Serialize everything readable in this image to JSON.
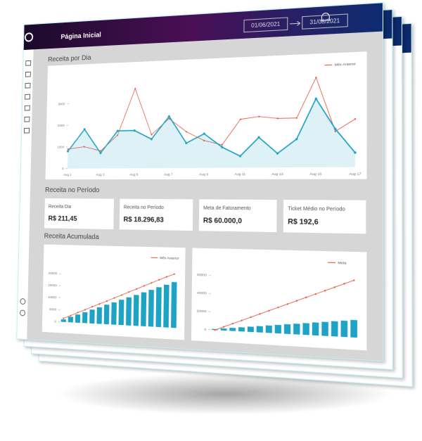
{
  "header": {
    "title": "Página Inicial",
    "date_start": "01/06/2021",
    "date_end": "31/08/2021"
  },
  "sections": [
    "Receita por Dia",
    "Receita no Período",
    "Receita Acumulada"
  ],
  "kpis": [
    {
      "label": "Receita Dia",
      "value": "R$ 211,45"
    },
    {
      "label": "Receita no Período",
      "value": "R$ 18.296,83"
    },
    {
      "label": "Meta de Faturamento",
      "value": "R$ 60.000,0"
    },
    {
      "label": "Ticket Médio no Período",
      "value": "R$ 192,6"
    }
  ],
  "chart_data": [
    {
      "type": "line",
      "categories": [
        "Aug 1",
        null,
        "Aug 3",
        null,
        "Aug 5",
        null,
        "Aug 7",
        null,
        "Aug 9",
        null,
        "Aug 11",
        null,
        "Aug 13",
        null,
        "Aug 15",
        null,
        "Aug 17"
      ],
      "series": [
        {
          "color": "#1fa3c4",
          "values": [
            800,
            1800,
            700,
            1700,
            1700,
            1300,
            2300,
            1100,
            1500,
            900,
            500,
            1300,
            600,
            1200,
            2900,
            1600,
            600
          ]
        },
        {
          "name": "Mês Anterior",
          "color": "#e8553f",
          "values": [
            900,
            1000,
            800,
            1500,
            3600,
            1500,
            2200,
            1600,
            1200,
            1000,
            2100,
            2200,
            2100,
            2100,
            3800,
            1500,
            2000
          ]
        }
      ],
      "ylim": [
        0,
        4000
      ],
      "yticks": [
        0,
        1000,
        2000,
        3000
      ]
    },
    {
      "type": "bar-line",
      "series": [
        {
          "color": "#1fa3c4",
          "values": [
            1100,
            2300,
            3400,
            4500,
            5700,
            6800,
            8000,
            9100,
            10300,
            11400,
            12500,
            13700,
            14800,
            16000,
            17100,
            18296.83
          ]
        },
        {
          "name": "Mês Anterior",
          "color": "#e8553f",
          "values": [
            1500,
            2800,
            4200,
            5500,
            6900,
            8200,
            9500,
            10900,
            12200,
            13600,
            14900,
            16300,
            17600,
            19000,
            20300,
            21500
          ]
        }
      ],
      "ylim": [
        0,
        25000
      ],
      "yticks": [
        0,
        5000,
        10000,
        15000,
        20000
      ]
    },
    {
      "type": "bar-line",
      "series": [
        {
          "color": "#1fa3c4",
          "values": [
            1100,
            2300,
            3400,
            4500,
            5700,
            6800,
            8000,
            9100,
            10300,
            11400,
            12500,
            13700,
            14800,
            16000,
            17100,
            18296.83
          ]
        },
        {
          "name": "Meta",
          "color": "#e8553f",
          "values": [
            0,
            4000,
            8000,
            12000,
            16000,
            20000,
            24000,
            28000,
            32000,
            36000,
            40000,
            44000,
            48000,
            52000,
            56000,
            60000
          ]
        }
      ],
      "ylim": [
        0,
        70000
      ],
      "yticks": [
        0,
        20000,
        40000,
        60000
      ]
    }
  ]
}
